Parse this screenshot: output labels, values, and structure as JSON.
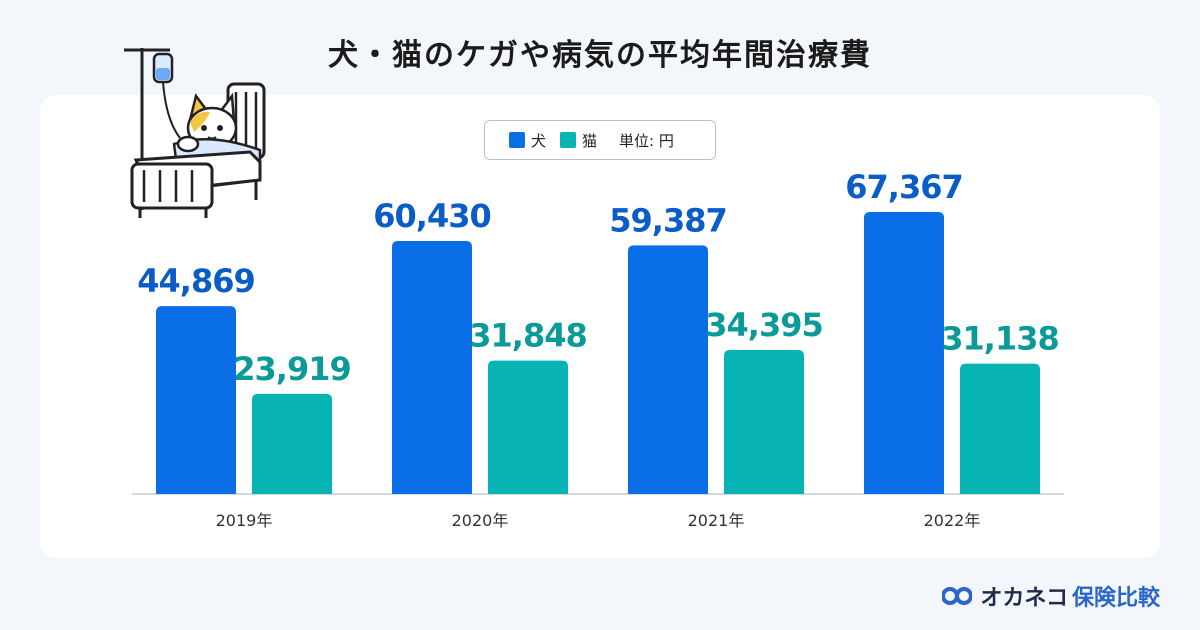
{
  "title": "犬・猫のケガや病気の平均年間治療費",
  "legend": {
    "dog_label": "犬",
    "cat_label": "猫",
    "unit": "単位: 円"
  },
  "brand": {
    "name": "オカネコ",
    "service": "保険比較"
  },
  "colors": {
    "dog": "#0a6fe6",
    "cat": "#07b3b3",
    "dog_label": "#0a5cc7",
    "cat_label": "#0a9a98"
  },
  "chart_data": {
    "type": "bar",
    "title": "犬・猫のケガや病気の平均年間治療費",
    "categories": [
      "2019年",
      "2020年",
      "2021年",
      "2022年"
    ],
    "series": [
      {
        "name": "犬",
        "values": [
          44869,
          60430,
          59387,
          67367
        ],
        "labels": [
          "44,869",
          "60,430",
          "59,387",
          "67,367"
        ]
      },
      {
        "name": "猫",
        "values": [
          23919,
          31848,
          34395,
          31138
        ],
        "labels": [
          "23,919",
          "31,848",
          "34,395",
          "31,138"
        ]
      }
    ],
    "ylabel": "単位: 円",
    "ylim": [
      0,
      75000
    ],
    "grid": false,
    "legend": "top-center"
  }
}
